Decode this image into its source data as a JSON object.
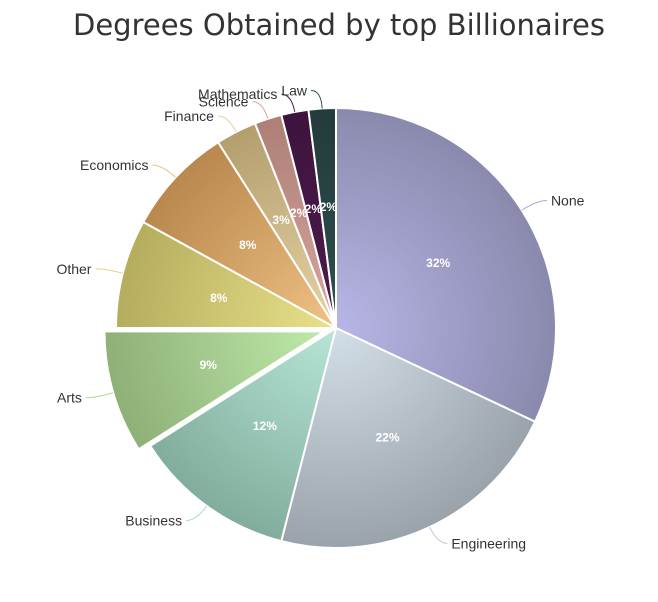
{
  "chart_data": {
    "type": "pie",
    "title": "Degrees Obtained by top Billionaires",
    "slices": [
      {
        "label": "None",
        "value": 32,
        "value_label": "32%",
        "colors": [
          "#b8b6e6",
          "#8a89ad"
        ],
        "line": "#a9a7d8"
      },
      {
        "label": "Engineering",
        "value": 22,
        "value_label": "22%",
        "colors": [
          "#d3dfe8",
          "#9aa2aa"
        ],
        "line": "#b8c8d2"
      },
      {
        "label": "Business",
        "value": 12,
        "value_label": "12%",
        "colors": [
          "#b7e6d6",
          "#82ad9d"
        ],
        "line": "#a5dccb"
      },
      {
        "label": "Arts",
        "value": 9,
        "value_label": "9%",
        "colors": [
          "#bdeaa9",
          "#8fb076"
        ],
        "line": "#a9dd92",
        "sliced": true
      },
      {
        "label": "Other",
        "value": 8,
        "value_label": "8%",
        "colors": [
          "#e9e28a",
          "#b5ad5e"
        ],
        "line": "#e0d67a"
      },
      {
        "label": "Economics",
        "value": 8,
        "value_label": "8%",
        "colors": [
          "#f0c283",
          "#b8884e"
        ],
        "line": "#f0c080"
      },
      {
        "label": "Finance",
        "value": 3,
        "value_label": "3%",
        "colors": [
          "#e6d3a4",
          "#b49e6e"
        ],
        "line": "#e8cfa2"
      },
      {
        "label": "Science",
        "value": 2,
        "value_label": "2%",
        "colors": [
          "#d9a79f",
          "#ad7f77"
        ],
        "line": "#dba49c"
      },
      {
        "label": "Mathematics",
        "value": 2,
        "value_label": "2%",
        "colors": [
          "#4d1a4d",
          "#3d143d"
        ],
        "line": "#4d1a4d"
      },
      {
        "label": "Law",
        "value": 2,
        "value_label": "2%",
        "colors": [
          "#2f4f4f",
          "#233b3b"
        ],
        "line": "#2f4f4f"
      }
    ],
    "legend": "none"
  }
}
